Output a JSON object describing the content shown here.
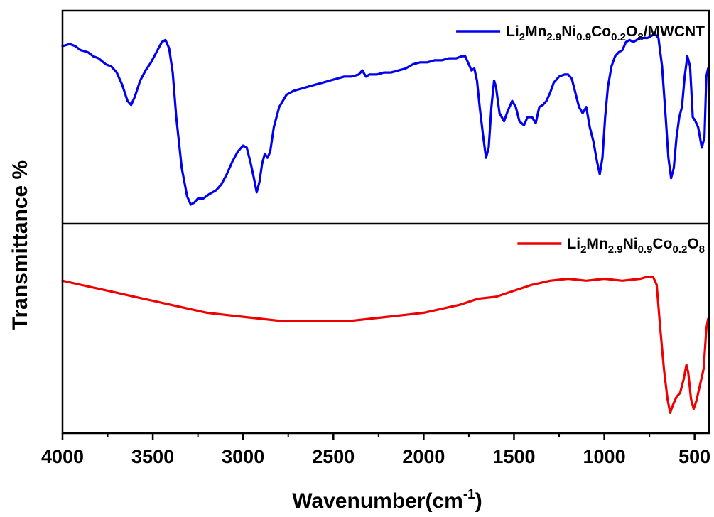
{
  "chart_data": {
    "type": "line",
    "layout": "stacked-panels",
    "xlabel": "Wavenumber(cm⁻¹)",
    "xlabel_main": "Wavenumber(cm",
    "xlabel_sup": "-1",
    "xlabel_close": ")",
    "ylabel": "Transmittance %",
    "xlim": [
      4000,
      420
    ],
    "x_reversed": true,
    "xticks": [
      4000,
      3500,
      3000,
      2500,
      2000,
      1500,
      1000,
      500
    ],
    "xtick_labels": [
      "4000",
      "3500",
      "3000",
      "2500",
      "2000",
      "1500",
      "1000",
      "500"
    ],
    "yticks_shown": false,
    "grid": false,
    "series": [
      {
        "name": "Li2Mn2.9Ni0.9Co0.2O8/MWCNT",
        "legend_parts": [
          {
            "t": "Li",
            "sub": false
          },
          {
            "t": "2",
            "sub": true
          },
          {
            "t": "Mn",
            "sub": false
          },
          {
            "t": "2.9",
            "sub": true
          },
          {
            "t": "Ni",
            "sub": false
          },
          {
            "t": "0.9",
            "sub": true
          },
          {
            "t": "Co",
            "sub": false
          },
          {
            "t": "0.2",
            "sub": true
          },
          {
            "t": "O",
            "sub": false
          },
          {
            "t": "8",
            "sub": true
          },
          {
            "t": "/MWCNT",
            "sub": false
          }
        ],
        "color": "#0000ee",
        "panel": "top",
        "legend_position": "top-right",
        "ylim": [
          0,
          100
        ],
        "points": [
          [
            4000,
            85
          ],
          [
            3960,
            86
          ],
          [
            3930,
            85
          ],
          [
            3900,
            83
          ],
          [
            3860,
            82
          ],
          [
            3830,
            80
          ],
          [
            3800,
            79
          ],
          [
            3760,
            76
          ],
          [
            3730,
            75
          ],
          [
            3700,
            72
          ],
          [
            3670,
            66
          ],
          [
            3640,
            58
          ],
          [
            3620,
            56
          ],
          [
            3600,
            60
          ],
          [
            3570,
            68
          ],
          [
            3540,
            73
          ],
          [
            3510,
            77
          ],
          [
            3480,
            82
          ],
          [
            3450,
            87
          ],
          [
            3430,
            88
          ],
          [
            3410,
            84
          ],
          [
            3390,
            72
          ],
          [
            3370,
            50
          ],
          [
            3340,
            25
          ],
          [
            3310,
            11
          ],
          [
            3290,
            7
          ],
          [
            3270,
            8
          ],
          [
            3250,
            10
          ],
          [
            3220,
            10
          ],
          [
            3190,
            12
          ],
          [
            3150,
            14
          ],
          [
            3120,
            17
          ],
          [
            3090,
            22
          ],
          [
            3060,
            28
          ],
          [
            3030,
            33
          ],
          [
            3000,
            36
          ],
          [
            2980,
            35
          ],
          [
            2960,
            28
          ],
          [
            2940,
            20
          ],
          [
            2925,
            13
          ],
          [
            2910,
            18
          ],
          [
            2895,
            27
          ],
          [
            2880,
            32
          ],
          [
            2865,
            30
          ],
          [
            2850,
            33
          ],
          [
            2830,
            45
          ],
          [
            2800,
            55
          ],
          [
            2760,
            61
          ],
          [
            2720,
            63
          ],
          [
            2680,
            64
          ],
          [
            2640,
            65
          ],
          [
            2600,
            66
          ],
          [
            2560,
            67
          ],
          [
            2520,
            68
          ],
          [
            2480,
            69
          ],
          [
            2440,
            70
          ],
          [
            2400,
            70
          ],
          [
            2360,
            71
          ],
          [
            2340,
            73
          ],
          [
            2320,
            70
          ],
          [
            2300,
            71
          ],
          [
            2260,
            71
          ],
          [
            2220,
            72
          ],
          [
            2180,
            72
          ],
          [
            2140,
            73
          ],
          [
            2100,
            74
          ],
          [
            2060,
            76
          ],
          [
            2020,
            77
          ],
          [
            1980,
            77
          ],
          [
            1940,
            78
          ],
          [
            1900,
            78
          ],
          [
            1860,
            79
          ],
          [
            1820,
            79
          ],
          [
            1790,
            80
          ],
          [
            1770,
            80
          ],
          [
            1750,
            76
          ],
          [
            1735,
            73
          ],
          [
            1720,
            74
          ],
          [
            1705,
            68
          ],
          [
            1690,
            55
          ],
          [
            1670,
            40
          ],
          [
            1655,
            30
          ],
          [
            1640,
            35
          ],
          [
            1625,
            55
          ],
          [
            1610,
            68
          ],
          [
            1600,
            65
          ],
          [
            1580,
            52
          ],
          [
            1555,
            48
          ],
          [
            1535,
            53
          ],
          [
            1510,
            58
          ],
          [
            1490,
            55
          ],
          [
            1470,
            48
          ],
          [
            1445,
            46
          ],
          [
            1425,
            50
          ],
          [
            1400,
            50
          ],
          [
            1380,
            47
          ],
          [
            1360,
            55
          ],
          [
            1340,
            56
          ],
          [
            1320,
            58
          ],
          [
            1300,
            62
          ],
          [
            1280,
            67
          ],
          [
            1250,
            70
          ],
          [
            1220,
            71
          ],
          [
            1200,
            71
          ],
          [
            1180,
            69
          ],
          [
            1160,
            62
          ],
          [
            1140,
            55
          ],
          [
            1120,
            52
          ],
          [
            1100,
            55
          ],
          [
            1080,
            45
          ],
          [
            1060,
            38
          ],
          [
            1040,
            28
          ],
          [
            1025,
            22
          ],
          [
            1010,
            30
          ],
          [
            995,
            50
          ],
          [
            980,
            65
          ],
          [
            960,
            75
          ],
          [
            940,
            80
          ],
          [
            920,
            82
          ],
          [
            900,
            83
          ],
          [
            880,
            87
          ],
          [
            860,
            88
          ],
          [
            840,
            87
          ],
          [
            820,
            88
          ],
          [
            800,
            89
          ],
          [
            780,
            89
          ],
          [
            760,
            89
          ],
          [
            740,
            90
          ],
          [
            720,
            91
          ],
          [
            700,
            89
          ],
          [
            680,
            75
          ],
          [
            660,
            50
          ],
          [
            645,
            30
          ],
          [
            630,
            20
          ],
          [
            615,
            25
          ],
          [
            600,
            40
          ],
          [
            585,
            50
          ],
          [
            570,
            55
          ],
          [
            555,
            70
          ],
          [
            540,
            80
          ],
          [
            525,
            75
          ],
          [
            510,
            50
          ],
          [
            495,
            48
          ],
          [
            480,
            45
          ],
          [
            460,
            35
          ],
          [
            445,
            40
          ],
          [
            435,
            70
          ],
          [
            425,
            74
          ]
        ]
      },
      {
        "name": "Li2Mn2.9Ni0.9Co0.2O8",
        "legend_parts": [
          {
            "t": "Li",
            "sub": false
          },
          {
            "t": "2",
            "sub": true
          },
          {
            "t": "Mn",
            "sub": false
          },
          {
            "t": "2.9",
            "sub": true
          },
          {
            "t": "Ni",
            "sub": false
          },
          {
            "t": "0.9",
            "sub": true
          },
          {
            "t": "Co",
            "sub": false
          },
          {
            "t": "0.2",
            "sub": true
          },
          {
            "t": "O",
            "sub": false
          },
          {
            "t": "8",
            "sub": true
          }
        ],
        "color": "#ee0000",
        "panel": "bottom",
        "legend_position": "top-right",
        "ylim": [
          0,
          100
        ],
        "points": [
          [
            4000,
            74
          ],
          [
            3900,
            72
          ],
          [
            3800,
            70
          ],
          [
            3700,
            68
          ],
          [
            3600,
            66
          ],
          [
            3500,
            64
          ],
          [
            3400,
            62
          ],
          [
            3300,
            60
          ],
          [
            3200,
            58
          ],
          [
            3100,
            57
          ],
          [
            3000,
            56
          ],
          [
            2900,
            55
          ],
          [
            2800,
            54
          ],
          [
            2700,
            54
          ],
          [
            2600,
            54
          ],
          [
            2500,
            54
          ],
          [
            2400,
            54
          ],
          [
            2300,
            55
          ],
          [
            2200,
            56
          ],
          [
            2100,
            57
          ],
          [
            2000,
            58
          ],
          [
            1900,
            60
          ],
          [
            1800,
            62
          ],
          [
            1700,
            65
          ],
          [
            1600,
            66
          ],
          [
            1500,
            69
          ],
          [
            1400,
            72
          ],
          [
            1300,
            74
          ],
          [
            1200,
            75
          ],
          [
            1100,
            74
          ],
          [
            1000,
            75
          ],
          [
            900,
            74
          ],
          [
            800,
            75
          ],
          [
            760,
            76
          ],
          [
            730,
            76
          ],
          [
            710,
            72
          ],
          [
            690,
            50
          ],
          [
            670,
            30
          ],
          [
            650,
            15
          ],
          [
            635,
            8
          ],
          [
            620,
            12
          ],
          [
            600,
            16
          ],
          [
            580,
            18
          ],
          [
            560,
            25
          ],
          [
            545,
            32
          ],
          [
            535,
            28
          ],
          [
            520,
            15
          ],
          [
            505,
            10
          ],
          [
            490,
            14
          ],
          [
            470,
            22
          ],
          [
            450,
            30
          ],
          [
            435,
            50
          ],
          [
            425,
            55
          ]
        ]
      }
    ]
  }
}
